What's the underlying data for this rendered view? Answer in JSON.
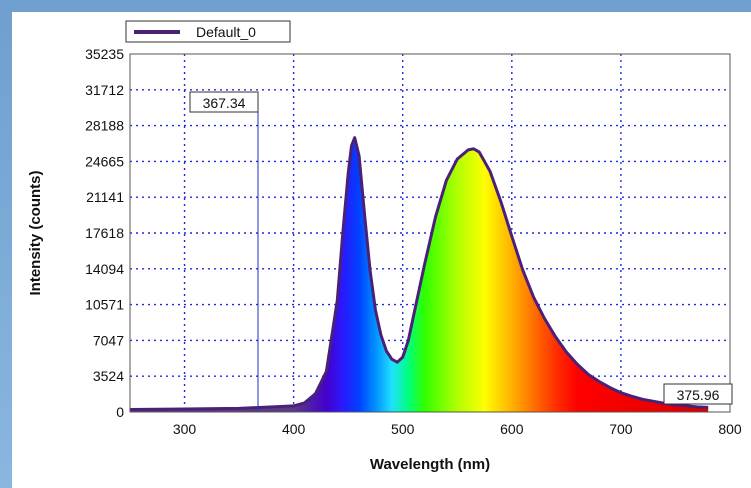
{
  "chart_data": {
    "type": "area",
    "title": "",
    "xlabel": "Wavelength (nm)",
    "ylabel": "Intensity (counts)",
    "xlim": [
      250,
      800
    ],
    "ylim": [
      0,
      35235
    ],
    "x_ticks": [
      300,
      400,
      500,
      600,
      700,
      800
    ],
    "y_ticks": [
      0,
      3524,
      7047,
      10571,
      14094,
      17618,
      21141,
      24665,
      28188,
      31712,
      35235
    ],
    "grid": true,
    "legend_position": "top-left",
    "series": [
      {
        "name": "Default_0",
        "color": "#4b2178",
        "x": [
          250,
          300,
          350,
          400,
          410,
          420,
          430,
          440,
          445,
          450,
          453,
          456,
          460,
          465,
          470,
          475,
          480,
          485,
          490,
          495,
          500,
          505,
          510,
          520,
          530,
          540,
          550,
          560,
          565,
          570,
          580,
          590,
          600,
          610,
          620,
          630,
          640,
          650,
          660,
          670,
          680,
          690,
          700,
          710,
          720,
          730,
          740,
          750,
          760,
          770,
          780
        ],
        "y": [
          250,
          300,
          350,
          600,
          900,
          1800,
          4000,
          11000,
          17500,
          23500,
          26200,
          27000,
          25200,
          19500,
          14000,
          10000,
          7600,
          6000,
          5200,
          4900,
          5400,
          7000,
          9500,
          14500,
          19200,
          22800,
          24900,
          25800,
          25900,
          25600,
          23700,
          20700,
          17300,
          14000,
          11300,
          9200,
          7400,
          5900,
          4700,
          3700,
          3000,
          2400,
          1900,
          1550,
          1250,
          1050,
          850,
          700,
          600,
          500,
          450
        ]
      }
    ],
    "annotations": [
      {
        "text": "367.34",
        "x": 367.34,
        "type": "cursor-line"
      },
      {
        "text": "375.96",
        "x": 760
      }
    ]
  }
}
